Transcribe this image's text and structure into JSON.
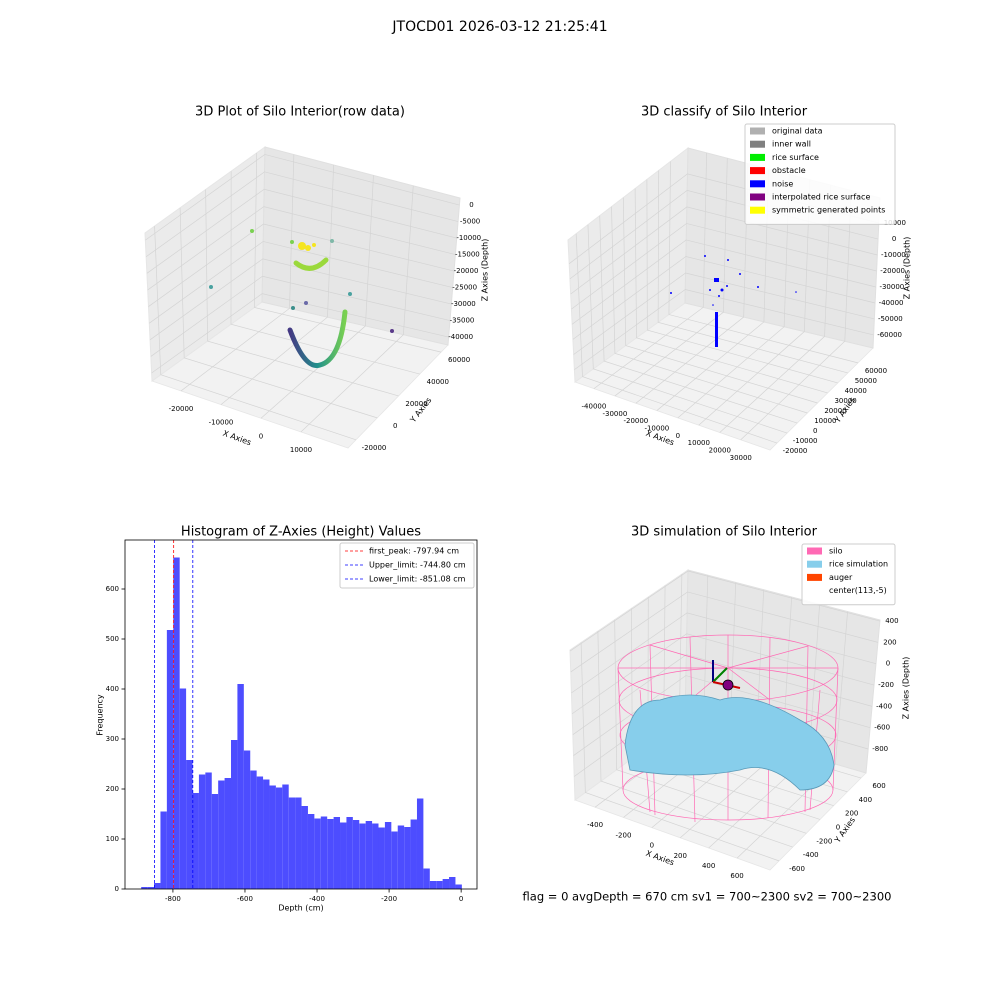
{
  "title": "JTOCD01 2026-03-12 21:25:41",
  "footer": "flag = 0     avgDepth = 670 cm  sv1 = 700~2300  sv2 = 700~2300",
  "chart_data": [
    {
      "type": "scatter3d",
      "title": "3D Plot of Silo Interior(row data)",
      "x_label": "X Axies",
      "y_label": "Y Axies",
      "z_label": "Z Axies (Depth)",
      "xlim": [
        -27250,
        21750
      ],
      "xticks": [
        -20000,
        -10000,
        0,
        10000
      ],
      "ylim": [
        -27500,
        66500
      ],
      "yticks": [
        -20000,
        0,
        20000,
        40000,
        60000
      ],
      "zlim": [
        -42400,
        2140
      ],
      "zticks": [
        0,
        -5000,
        -10000,
        -15000,
        -20000,
        -25000,
        -30000,
        -35000,
        -40000
      ]
    },
    {
      "type": "scatter3d",
      "title": "3D classify of Silo Interior",
      "x_label": "X Axies",
      "y_label": "Y Axies",
      "z_label": "Z Axies (Depth)",
      "xlim": [
        -49020,
        43940
      ],
      "xticks": [
        -40000,
        -30000,
        -20000,
        -10000,
        0,
        10000,
        20000,
        30000
      ],
      "ylim": [
        -26920,
        74860
      ],
      "yticks": [
        -20000,
        -10000,
        0,
        10000,
        20000,
        30000,
        40000,
        50000,
        60000
      ],
      "zlim": [
        -68160,
        25670
      ],
      "zticks": [
        10000,
        0,
        -10000,
        -20000,
        -30000,
        -40000,
        -50000,
        -60000
      ],
      "legend": [
        {
          "name": "original data",
          "color": "#b0b0b0"
        },
        {
          "name": "inner wall",
          "color": "#808080"
        },
        {
          "name": "rice surface",
          "color": "#00ee00"
        },
        {
          "name": "obstacle",
          "color": "#ff0000"
        },
        {
          "name": "noise",
          "color": "#0000ff"
        },
        {
          "name": "interpolated rice surface",
          "color": "#800080"
        },
        {
          "name": "symmetric generated points",
          "color": "#ffff00"
        }
      ]
    },
    {
      "type": "histogram",
      "title": "Histogram of Z-Axies (Height) Values",
      "x_label": "Depth (cm)",
      "y_label": "Frequency",
      "color": "#4d4dff",
      "bins": [
        -888,
        -870.2,
        -852.4,
        -834.6,
        -816.8,
        -799,
        -781.2,
        -763.4,
        -745.6,
        -727.8,
        -710,
        -692.2,
        -674.4,
        -656.6,
        -638.8,
        -621,
        -603.2,
        -585.4,
        -567.6,
        -549.8,
        -532,
        -514.2,
        -496.4,
        -478.6,
        -460.8,
        -443,
        -425.2,
        -407.4,
        -389.6,
        -371.8,
        -354,
        -336.2,
        -318.4,
        -300.6,
        -282.8,
        -265,
        -247.2,
        -229.4,
        -211.6,
        -193.8,
        -176,
        -158.2,
        -140.4,
        -122.6,
        -104.8,
        -87,
        -69.2,
        -51.4,
        -33.6,
        -15.8,
        2
      ],
      "counts": [
        4,
        4,
        12,
        155,
        518,
        663,
        401,
        258,
        192,
        229,
        233,
        190,
        217,
        222,
        298,
        410,
        277,
        237,
        225,
        219,
        207,
        203,
        209,
        183,
        183,
        166,
        150,
        141,
        145,
        140,
        144,
        133,
        144,
        138,
        131,
        136,
        131,
        123,
        134,
        115,
        127,
        124,
        139,
        181,
        41,
        16,
        16,
        20,
        24,
        9
      ],
      "xlim": [
        -933,
        44
      ],
      "xticks": [
        -800,
        -600,
        -400,
        -200,
        0
      ],
      "ylim": [
        0,
        698
      ],
      "yticks": [
        0,
        100,
        200,
        300,
        400,
        500,
        600
      ],
      "lines": [
        {
          "name": "first_peak: -797.94 cm",
          "value": -797.94,
          "color": "#ff0000"
        },
        {
          "name": "Upper_limit: -744.80 cm",
          "value": -744.8,
          "color": "#0000ff"
        },
        {
          "name": "Lower_limit: -851.08 cm",
          "value": -851.08,
          "color": "#0000ff"
        }
      ]
    },
    {
      "type": "surface3d",
      "title": "3D simulation of Silo Interior",
      "x_label": "X Axies",
      "y_label": "Y Axies",
      "z_label": "Z Axies (Depth)",
      "xlim": [
        -541.5,
        832
      ],
      "xticks": [
        -400,
        -200,
        0,
        200,
        400,
        600
      ],
      "ylim": [
        -732,
        673
      ],
      "yticks": [
        -600,
        -400,
        -200,
        0,
        200,
        400,
        600
      ],
      "zlim": [
        -1025,
        410
      ],
      "zticks": [
        400,
        200,
        0,
        -200,
        -400,
        -600,
        -800
      ],
      "legend": [
        {
          "name": "silo",
          "color": "#ff69b4"
        },
        {
          "name": "rice simulation",
          "color": "#87ceeb"
        },
        {
          "name": "auger",
          "color": "#ff4500"
        },
        {
          "name": "center(113,-5)",
          "color": "#ffffff"
        }
      ]
    }
  ]
}
